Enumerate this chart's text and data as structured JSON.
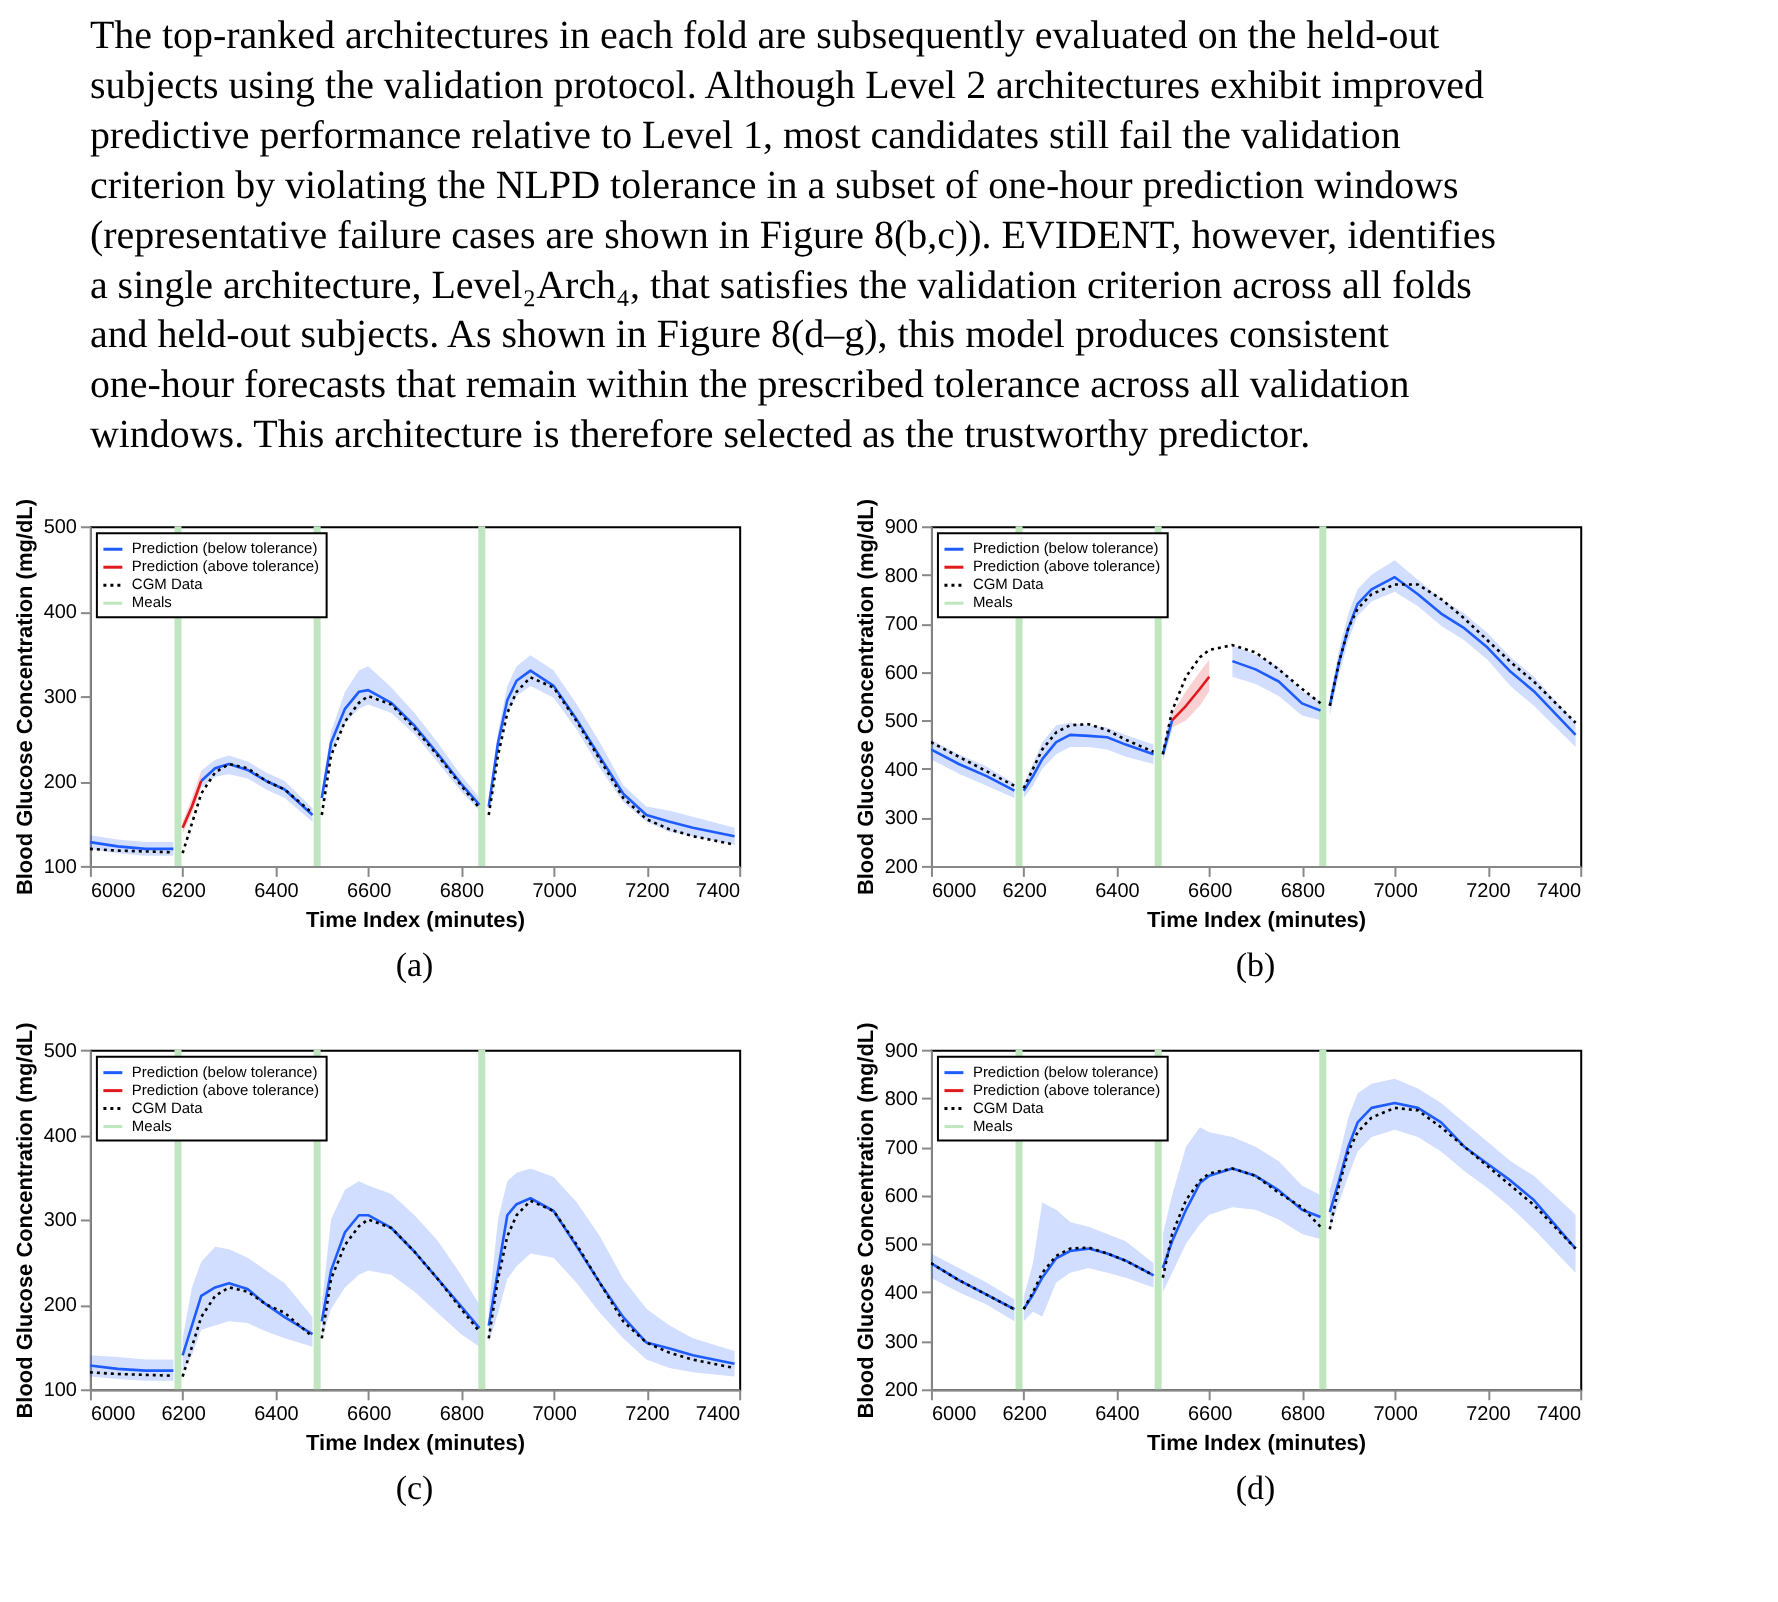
{
  "chart_data": [
    {
      "type": "other",
      "annotations": [
        "The top-ranked architectures in each fold are subsequently evaluated on the held-out",
        "subjects using the validation protocol. Although Level 2 architectures exhibit improved",
        "predictive performance relative to Level 1, most candidates still fail the validation",
        "criterion by violating the NLPD tolerance in a subset of one-hour prediction windows",
        "(representative failure cases are shown in Figure 8(b,c)). EVIDENT, however, identifies",
        "a single architecture, Level₂Arch₄, that satisfies the validation criterion across all folds",
        "and held-out subjects.  As shown in Figure 8(d–g), this model produces consistent",
        "one-hour forecasts that remain within the prescribed tolerance across all validation",
        "windows. This architecture is therefore selected as the trustworthy predictor."
      ]
    },
    {
      "type": "line",
      "xlabel": "Time Index (minutes)",
      "ylabel": "Blood Glucose Concentration (mg/dL)",
      "annotations": [
        "(a)"
      ],
      "xlim": [
        6000,
        7400
      ],
      "xticks": [
        6000,
        6200,
        6400,
        6600,
        6800,
        7000,
        7200,
        7400
      ],
      "ylim": [
        100,
        500
      ],
      "yticks": [
        100,
        200,
        300,
        400,
        500
      ],
      "grid": false,
      "legend": "top left",
      "x": [
        6000,
        6060,
        6120,
        6180,
        6190,
        6200,
        6220,
        6240,
        6270,
        6300,
        6340,
        6380,
        6420,
        6480,
        6490,
        6500,
        6520,
        6550,
        6580,
        6600,
        6650,
        6700,
        6750,
        6800,
        6840,
        6850,
        6860,
        6880,
        6900,
        6920,
        6950,
        7000,
        7050,
        7100,
        7150,
        7200,
        7250,
        7300,
        7390
      ],
      "series": [
        {
          "name": "Prediction (below tolerance)",
          "color": "#1f5cff",
          "line_style": "solid",
          "values": [
            128,
            123,
            120,
            120,
            null,
            null,
            null,
            200,
            215,
            220,
            213,
            200,
            190,
            160,
            null,
            180,
            245,
            285,
            305,
            307,
            292,
            265,
            232,
            197,
            172,
            null,
            170,
            245,
            295,
            318,
            330,
            312,
            272,
            228,
            185,
            160,
            152,
            145,
            135
          ],
          "lower": [
            120,
            115,
            112,
            112,
            null,
            null,
            null,
            192,
            205,
            208,
            203,
            190,
            180,
            152,
            null,
            172,
            232,
            268,
            285,
            290,
            280,
            255,
            222,
            188,
            165,
            null,
            162,
            232,
            280,
            300,
            312,
            298,
            260,
            215,
            175,
            152,
            140,
            135,
            125
          ],
          "upper": [
            136,
            131,
            128,
            128,
            null,
            null,
            null,
            212,
            225,
            230,
            223,
            210,
            200,
            168,
            null,
            188,
            258,
            305,
            330,
            335,
            310,
            280,
            245,
            207,
            180,
            null,
            178,
            258,
            312,
            335,
            348,
            330,
            290,
            245,
            195,
            170,
            165,
            158,
            145
          ]
        },
        {
          "name": "Prediction (above tolerance)",
          "color": "#e0191c",
          "line_style": "solid",
          "values": [
            null,
            null,
            null,
            null,
            null,
            145,
            170,
            200,
            null,
            null,
            null,
            null,
            null,
            null,
            null,
            null,
            null,
            null,
            null,
            null,
            null,
            null,
            null,
            null,
            null,
            null,
            null,
            null,
            null,
            null,
            null,
            null,
            null,
            null,
            null,
            null,
            null,
            null,
            null
          ],
          "lower": [
            null,
            null,
            null,
            null,
            null,
            138,
            162,
            192,
            null,
            null,
            null,
            null,
            null,
            null,
            null,
            null,
            null,
            null,
            null,
            null,
            null,
            null,
            null,
            null,
            null,
            null,
            null,
            null,
            null,
            null,
            null,
            null,
            null,
            null,
            null,
            null,
            null,
            null,
            null
          ],
          "upper": [
            null,
            null,
            null,
            null,
            null,
            152,
            180,
            212,
            null,
            null,
            null,
            null,
            null,
            null,
            null,
            null,
            null,
            null,
            null,
            null,
            null,
            null,
            null,
            null,
            null,
            null,
            null,
            null,
            null,
            null,
            null,
            null,
            null,
            null,
            null,
            null,
            null,
            null,
            null
          ]
        },
        {
          "name": "CGM Data",
          "color": "#000000",
          "line_style": "dotted",
          "values": [
            120,
            118,
            117,
            116,
            null,
            115,
            150,
            185,
            210,
            220,
            215,
            200,
            190,
            162,
            null,
            160,
            230,
            270,
            292,
            300,
            290,
            262,
            230,
            195,
            168,
            null,
            160,
            230,
            280,
            305,
            322,
            310,
            270,
            225,
            180,
            155,
            143,
            135,
            125
          ]
        }
      ],
      "ref_lines": [
        {
          "axis": "x",
          "value": 6190,
          "label": "Meals",
          "color": "#bfe6bf"
        },
        {
          "axis": "x",
          "value": 6490,
          "color": "#bfe6bf"
        },
        {
          "axis": "x",
          "value": 6845,
          "color": "#bfe6bf"
        }
      ]
    },
    {
      "type": "line",
      "xlabel": "Time Index (minutes)",
      "ylabel": "Blood Glucose Concentration (mg/dL)",
      "annotations": [
        "(b)"
      ],
      "xlim": [
        6000,
        7400
      ],
      "xticks": [
        6000,
        6200,
        6400,
        6600,
        6800,
        7000,
        7200,
        7400
      ],
      "ylim": [
        200,
        900
      ],
      "yticks": [
        200,
        300,
        400,
        500,
        600,
        700,
        800,
        900
      ],
      "grid": false,
      "legend": "top left",
      "x": [
        6000,
        6060,
        6120,
        6180,
        6190,
        6200,
        6220,
        6240,
        6270,
        6300,
        6340,
        6380,
        6420,
        6480,
        6490,
        6500,
        6520,
        6550,
        6580,
        6600,
        6650,
        6700,
        6750,
        6800,
        6840,
        6850,
        6860,
        6880,
        6900,
        6920,
        6950,
        7000,
        7050,
        7100,
        7150,
        7200,
        7250,
        7300,
        7390
      ],
      "series": [
        {
          "name": "Prediction (below tolerance)",
          "color": "#1f5cff",
          "line_style": "solid",
          "values": [
            440,
            410,
            385,
            355,
            null,
            355,
            385,
            420,
            455,
            470,
            468,
            465,
            450,
            430,
            null,
            430,
            500,
            null,
            null,
            null,
            622,
            605,
            580,
            535,
            520,
            null,
            530,
            620,
            690,
            740,
            770,
            795,
            760,
            720,
            690,
            650,
            600,
            560,
            470
          ],
          "lower": [
            420,
            390,
            365,
            340,
            null,
            340,
            365,
            400,
            430,
            445,
            445,
            440,
            425,
            410,
            null,
            415,
            480,
            null,
            null,
            null,
            590,
            575,
            550,
            510,
            500,
            null,
            510,
            595,
            665,
            715,
            745,
            765,
            735,
            695,
            665,
            625,
            570,
            530,
            445
          ],
          "upper": [
            460,
            430,
            405,
            370,
            null,
            370,
            410,
            455,
            490,
            495,
            490,
            485,
            470,
            450,
            null,
            445,
            525,
            null,
            null,
            null,
            655,
            635,
            610,
            560,
            540,
            null,
            550,
            645,
            720,
            770,
            800,
            830,
            790,
            750,
            720,
            680,
            630,
            590,
            495
          ]
        },
        {
          "name": "Prediction (above tolerance)",
          "color": "#e0191c",
          "line_style": "solid",
          "values": [
            null,
            null,
            null,
            null,
            null,
            null,
            null,
            null,
            null,
            null,
            null,
            null,
            null,
            null,
            null,
            null,
            500,
            530,
            565,
            590,
            null,
            null,
            null,
            null,
            null,
            null,
            null,
            null,
            null,
            null,
            null,
            null,
            null,
            null,
            null,
            null,
            null,
            null,
            null
          ],
          "lower": [
            null,
            null,
            null,
            null,
            null,
            null,
            null,
            null,
            null,
            null,
            null,
            null,
            null,
            null,
            null,
            null,
            485,
            500,
            530,
            560,
            null,
            null,
            null,
            null,
            null,
            null,
            null,
            null,
            null,
            null,
            null,
            null,
            null,
            null,
            null,
            null,
            null,
            null,
            null
          ],
          "upper": [
            null,
            null,
            null,
            null,
            null,
            null,
            null,
            null,
            null,
            null,
            null,
            null,
            null,
            null,
            null,
            null,
            515,
            560,
            600,
            625,
            null,
            null,
            null,
            null,
            null,
            null,
            null,
            null,
            null,
            null,
            null,
            null,
            null,
            null,
            null,
            null,
            null,
            null,
            null
          ]
        },
        {
          "name": "CGM Data",
          "color": "#000000",
          "line_style": "dotted",
          "values": [
            455,
            425,
            395,
            365,
            null,
            360,
            400,
            440,
            475,
            490,
            492,
            480,
            460,
            435,
            null,
            430,
            520,
            590,
            630,
            645,
            655,
            640,
            605,
            565,
            535,
            null,
            530,
            620,
            690,
            730,
            760,
            780,
            780,
            750,
            710,
            665,
            620,
            580,
            495
          ]
        }
      ],
      "ref_lines": [
        {
          "axis": "x",
          "value": 6190,
          "label": "Meals",
          "color": "#bfe6bf"
        },
        {
          "axis": "x",
          "value": 6490,
          "color": "#bfe6bf"
        },
        {
          "axis": "x",
          "value": 6845,
          "color": "#bfe6bf"
        }
      ]
    },
    {
      "type": "line",
      "xlabel": "Time Index (minutes)",
      "ylabel": "Blood Glucose Concentration (mg/dL)",
      "annotations": [
        "(c)"
      ],
      "xlim": [
        6000,
        7400
      ],
      "xticks": [
        6000,
        6200,
        6400,
        6600,
        6800,
        7000,
        7200,
        7400
      ],
      "ylim": [
        100,
        500
      ],
      "yticks": [
        100,
        200,
        300,
        400,
        500
      ],
      "grid": false,
      "legend": "top left",
      "x": [
        6000,
        6060,
        6120,
        6180,
        6190,
        6200,
        6220,
        6240,
        6270,
        6300,
        6340,
        6380,
        6420,
        6480,
        6490,
        6500,
        6520,
        6550,
        6580,
        6600,
        6650,
        6700,
        6750,
        6800,
        6840,
        6850,
        6860,
        6880,
        6900,
        6920,
        6950,
        7000,
        7050,
        7100,
        7150,
        7200,
        7250,
        7300,
        7390
      ],
      "series": [
        {
          "name": "Prediction (below tolerance)",
          "color": "#1f5cff",
          "line_style": "solid",
          "values": [
            128,
            124,
            122,
            122,
            null,
            140,
            175,
            210,
            220,
            225,
            218,
            200,
            185,
            165,
            null,
            180,
            240,
            285,
            305,
            305,
            290,
            262,
            230,
            198,
            172,
            null,
            175,
            240,
            305,
            318,
            325,
            310,
            268,
            225,
            185,
            155,
            148,
            140,
            130
          ],
          "lower": [
            115,
            112,
            110,
            110,
            null,
            120,
            140,
            170,
            175,
            180,
            178,
            168,
            160,
            150,
            null,
            160,
            195,
            220,
            235,
            240,
            235,
            215,
            190,
            165,
            150,
            null,
            155,
            190,
            230,
            245,
            260,
            255,
            225,
            190,
            160,
            135,
            125,
            120,
            115
          ],
          "upper": [
            140,
            138,
            135,
            135,
            null,
            160,
            220,
            250,
            268,
            265,
            255,
            240,
            225,
            185,
            null,
            200,
            300,
            335,
            345,
            340,
            330,
            305,
            275,
            235,
            200,
            null,
            195,
            300,
            345,
            355,
            360,
            350,
            320,
            280,
            230,
            195,
            175,
            160,
            145
          ]
        },
        {
          "name": "Prediction (above tolerance)",
          "color": "#e0191c",
          "line_style": "solid",
          "values": [
            null,
            null,
            null,
            null,
            null,
            null,
            null,
            null,
            null,
            null,
            null,
            null,
            null,
            null,
            null,
            null,
            null,
            null,
            null,
            null,
            null,
            null,
            null,
            null,
            null,
            null,
            null,
            null,
            null,
            null,
            null,
            null,
            null,
            null,
            null,
            null,
            null,
            null,
            null
          ]
        },
        {
          "name": "CGM Data",
          "color": "#000000",
          "line_style": "dotted",
          "values": [
            120,
            118,
            117,
            116,
            null,
            115,
            150,
            185,
            210,
            220,
            215,
            200,
            190,
            162,
            null,
            160,
            230,
            270,
            292,
            300,
            290,
            262,
            230,
            195,
            168,
            null,
            160,
            230,
            280,
            305,
            322,
            310,
            270,
            225,
            180,
            155,
            143,
            135,
            125
          ]
        }
      ],
      "ref_lines": [
        {
          "axis": "x",
          "value": 6190,
          "label": "Meals",
          "color": "#bfe6bf"
        },
        {
          "axis": "x",
          "value": 6490,
          "color": "#bfe6bf"
        },
        {
          "axis": "x",
          "value": 6845,
          "color": "#bfe6bf"
        }
      ]
    },
    {
      "type": "line",
      "xlabel": "Time Index (minutes)",
      "ylabel": "Blood Glucose Concentration (mg/dL)",
      "annotations": [
        "(d)"
      ],
      "xlim": [
        6000,
        7400
      ],
      "xticks": [
        6000,
        6200,
        6400,
        6600,
        6800,
        7000,
        7200,
        7400
      ],
      "ylim": [
        200,
        900
      ],
      "yticks": [
        200,
        300,
        400,
        500,
        600,
        700,
        800,
        900
      ],
      "grid": false,
      "legend": "top left",
      "x": [
        6000,
        6060,
        6120,
        6180,
        6190,
        6200,
        6220,
        6240,
        6270,
        6300,
        6340,
        6380,
        6420,
        6480,
        6490,
        6500,
        6520,
        6550,
        6580,
        6600,
        6650,
        6700,
        6750,
        6800,
        6840,
        6850,
        6860,
        6880,
        6900,
        6920,
        6950,
        7000,
        7050,
        7100,
        7150,
        7200,
        7250,
        7300,
        7390
      ],
      "series": [
        {
          "name": "Prediction (below tolerance)",
          "color": "#1f5cff",
          "line_style": "solid",
          "values": [
            460,
            425,
            395,
            365,
            null,
            365,
            395,
            430,
            470,
            485,
            490,
            480,
            465,
            435,
            null,
            450,
            505,
            570,
            625,
            640,
            655,
            640,
            610,
            570,
            555,
            null,
            565,
            630,
            700,
            750,
            780,
            790,
            780,
            750,
            700,
            665,
            630,
            590,
            490
          ],
          "lower": [
            430,
            400,
            375,
            340,
            null,
            340,
            360,
            350,
            420,
            440,
            450,
            440,
            430,
            410,
            null,
            400,
            440,
            500,
            540,
            560,
            575,
            570,
            550,
            520,
            510,
            null,
            530,
            585,
            640,
            690,
            720,
            735,
            720,
            690,
            650,
            615,
            575,
            530,
            440
          ],
          "upper": [
            480,
            450,
            420,
            385,
            null,
            390,
            460,
            585,
            570,
            545,
            535,
            520,
            505,
            460,
            null,
            520,
            600,
            700,
            740,
            730,
            720,
            700,
            670,
            620,
            600,
            null,
            610,
            680,
            760,
            810,
            830,
            840,
            820,
            790,
            750,
            710,
            670,
            640,
            560
          ]
        },
        {
          "name": "Prediction (above tolerance)",
          "color": "#e0191c",
          "line_style": "solid",
          "values": [
            null,
            null,
            null,
            null,
            null,
            null,
            null,
            null,
            null,
            null,
            null,
            null,
            null,
            null,
            null,
            null,
            null,
            null,
            null,
            null,
            null,
            null,
            null,
            null,
            null,
            null,
            null,
            null,
            null,
            null,
            null,
            null,
            null,
            null,
            null,
            null,
            null,
            null,
            null
          ]
        },
        {
          "name": "CGM Data",
          "color": "#000000",
          "line_style": "dotted",
          "values": [
            460,
            425,
            395,
            365,
            null,
            365,
            400,
            440,
            475,
            490,
            492,
            480,
            465,
            435,
            null,
            430,
            520,
            590,
            630,
            645,
            655,
            640,
            605,
            575,
            535,
            null,
            530,
            620,
            690,
            730,
            760,
            780,
            775,
            740,
            700,
            660,
            620,
            580,
            490
          ]
        }
      ],
      "ref_lines": [
        {
          "axis": "x",
          "value": 6190,
          "label": "Meals",
          "color": "#bfe6bf"
        },
        {
          "axis": "x",
          "value": 6490,
          "color": "#bfe6bf"
        },
        {
          "axis": "x",
          "value": 6845,
          "color": "#bfe6bf"
        }
      ]
    }
  ]
}
